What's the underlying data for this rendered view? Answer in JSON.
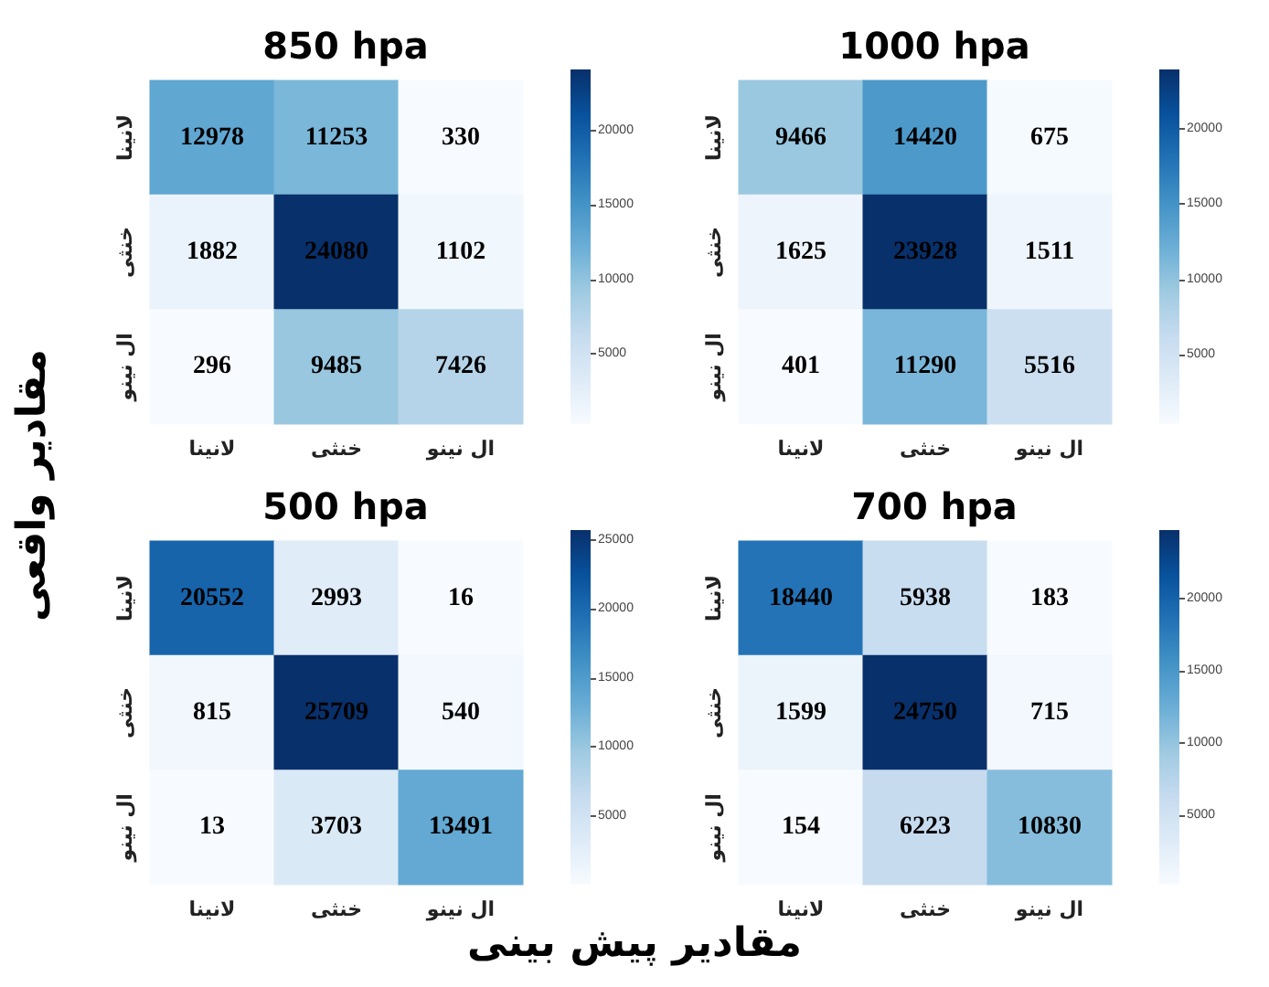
{
  "chart_data": [
    {
      "type": "heatmap",
      "title": "850 hpa",
      "ylabel": "مقادیر واقعی",
      "categories": [
        "لانینا",
        "خنثی",
        "ال نینو"
      ],
      "y_categories": [
        "لانینا",
        "خنثی",
        "ال نینو"
      ],
      "cells": [
        [
          12978,
          11253,
          330
        ],
        [
          1882,
          24080,
          1102
        ],
        [
          296,
          9485,
          7426
        ]
      ],
      "clim": [
        296,
        24080
      ],
      "cticks": [
        5000,
        10000,
        15000,
        20000
      ],
      "data_labels": true
    },
    {
      "type": "heatmap",
      "title": "1000 hpa",
      "categories": [
        "لانینا",
        "خنثی",
        "ال نینو"
      ],
      "y_categories": [
        "لانینا",
        "خنثی",
        "ال نینو"
      ],
      "cells": [
        [
          9466,
          14420,
          675
        ],
        [
          1625,
          23928,
          1511
        ],
        [
          401,
          11290,
          5516
        ]
      ],
      "clim": [
        401,
        23928
      ],
      "cticks": [
        5000,
        10000,
        15000,
        20000
      ],
      "data_labels": true
    },
    {
      "type": "heatmap",
      "title": "500 hpa",
      "xlabel": "مقادیر پیش بینی",
      "categories": [
        "لانینا",
        "خنثی",
        "ال نینو"
      ],
      "y_categories": [
        "لانینا",
        "خنثی",
        "ال نینو"
      ],
      "cells": [
        [
          20552,
          2993,
          16
        ],
        [
          815,
          25709,
          540
        ],
        [
          13,
          3703,
          13491
        ]
      ],
      "clim": [
        13,
        25709
      ],
      "cticks": [
        5000,
        10000,
        15000,
        20000,
        25000
      ],
      "data_labels": true
    },
    {
      "type": "heatmap",
      "title": "700 hpa",
      "categories": [
        "لانینا",
        "خنثی",
        "ال نینو"
      ],
      "y_categories": [
        "لانینا",
        "خنثی",
        "ال نینو"
      ],
      "cells": [
        [
          18440,
          5938,
          183
        ],
        [
          1599,
          24750,
          715
        ],
        [
          154,
          6223,
          10830
        ]
      ],
      "clim": [
        154,
        24750
      ],
      "cticks": [
        5000,
        10000,
        15000,
        20000
      ],
      "data_labels": true
    }
  ]
}
